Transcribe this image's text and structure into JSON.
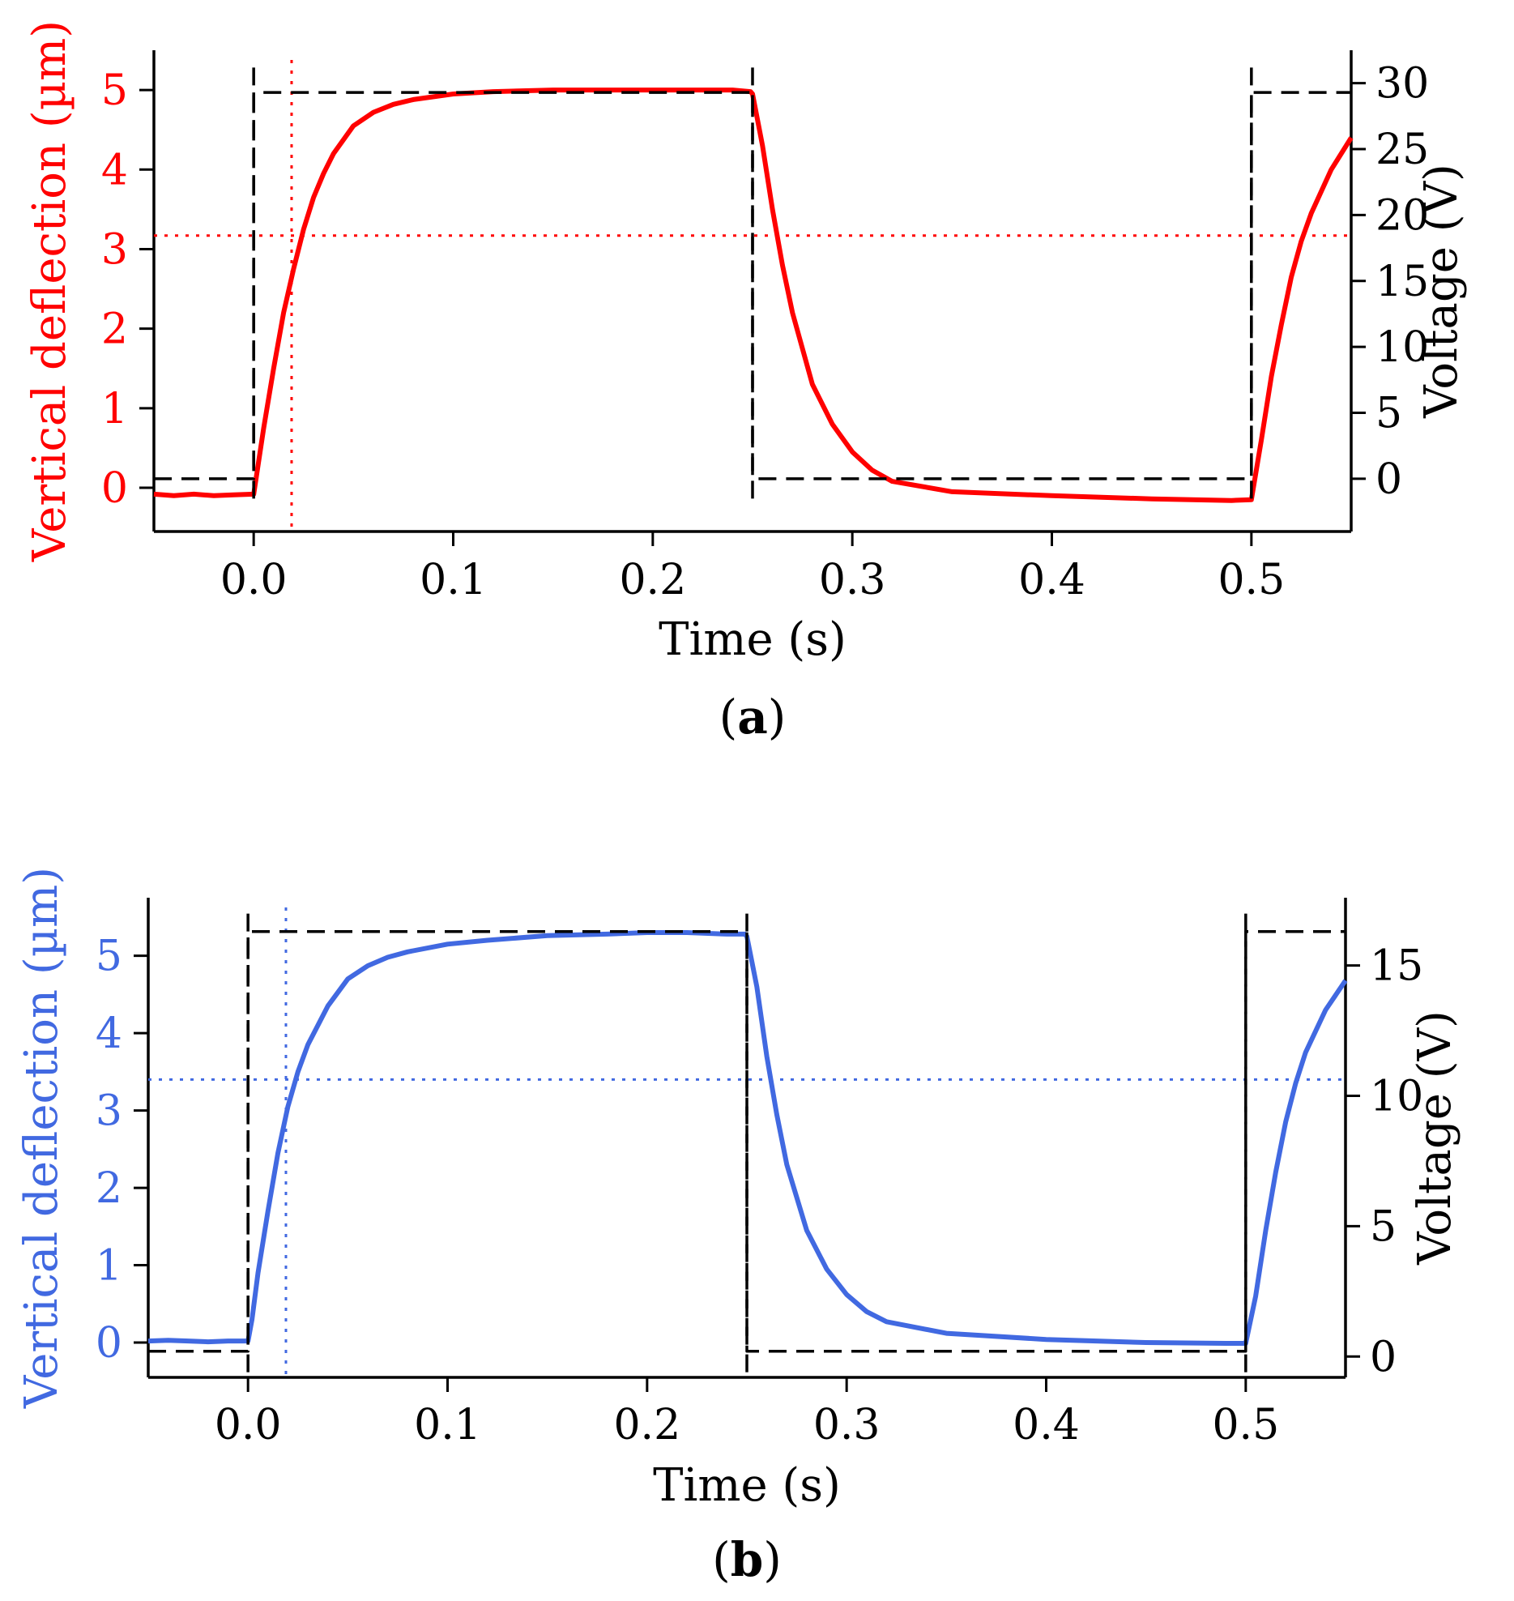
{
  "chart_data": [
    {
      "type": "line",
      "panel_label": "a",
      "caption": {
        "open": "(",
        "letter": "a",
        "close": ")"
      },
      "color": "#ff0000",
      "xlabel": "Time (s)",
      "ylabel_left": "Vertical deflection (µm)",
      "ylabel_right": "Voltage (V)",
      "xlim": [
        -0.05,
        0.55
      ],
      "ylim_left": [
        -0.55,
        5.5
      ],
      "ylim_right": [
        -4.0,
        32.5
      ],
      "xticks": [
        0.0,
        0.1,
        0.2,
        0.3,
        0.4,
        0.5
      ],
      "xtick_labels": [
        "0.0",
        "0.1",
        "0.2",
        "0.3",
        "0.4",
        "0.5"
      ],
      "yticks_left": [
        0,
        1,
        2,
        3,
        4,
        5
      ],
      "ytick_labels_left": [
        "0",
        "1",
        "2",
        "3",
        "4",
        "5"
      ],
      "yticks_right": [
        0,
        5,
        10,
        15,
        20,
        25,
        30
      ],
      "ytick_labels_right": [
        "0",
        "5",
        "10",
        "15",
        "20",
        "25",
        "30"
      ],
      "grid": false,
      "series": [
        {
          "name": "Vertical deflection",
          "axis": "left",
          "style": "solid",
          "color": "#ff0000",
          "x": [
            -0.05,
            -0.04,
            -0.03,
            -0.02,
            -0.01,
            0.0,
            0.002,
            0.005,
            0.01,
            0.015,
            0.02,
            0.025,
            0.03,
            0.035,
            0.04,
            0.05,
            0.06,
            0.07,
            0.08,
            0.1,
            0.12,
            0.15,
            0.18,
            0.2,
            0.22,
            0.24,
            0.249,
            0.25,
            0.255,
            0.26,
            0.265,
            0.27,
            0.28,
            0.29,
            0.3,
            0.31,
            0.32,
            0.35,
            0.4,
            0.45,
            0.49,
            0.5,
            0.505,
            0.51,
            0.515,
            0.52,
            0.525,
            0.53,
            0.54,
            0.55
          ],
          "y": [
            -0.08,
            -0.1,
            -0.08,
            -0.1,
            -0.09,
            -0.08,
            0.25,
            0.75,
            1.5,
            2.2,
            2.75,
            3.25,
            3.65,
            3.95,
            4.2,
            4.55,
            4.72,
            4.82,
            4.88,
            4.95,
            4.98,
            5.0,
            5.0,
            5.0,
            5.0,
            5.0,
            4.98,
            4.95,
            4.3,
            3.5,
            2.8,
            2.2,
            1.3,
            0.8,
            0.45,
            0.22,
            0.08,
            -0.05,
            -0.1,
            -0.14,
            -0.16,
            -0.15,
            0.6,
            1.4,
            2.05,
            2.65,
            3.1,
            3.45,
            4.0,
            4.4
          ]
        },
        {
          "name": "Voltage",
          "axis": "right",
          "style": "dashed",
          "color": "#000000",
          "x": [
            -0.05,
            0.0,
            0.0,
            0.25,
            0.25,
            0.5,
            0.5,
            0.55
          ],
          "y": [
            0,
            0,
            29.3,
            29.3,
            0,
            0,
            29.3,
            29.3
          ]
        }
      ],
      "markers": {
        "t63_x": 0.019,
        "y63": 3.17,
        "voltage_edges_x": [
          0.0,
          0.25,
          0.5
        ],
        "voltage_edge_range_right": [
          -1.5,
          31.5
        ]
      }
    },
    {
      "type": "line",
      "panel_label": "b",
      "caption": {
        "open": "(",
        "letter": "b",
        "close": ")"
      },
      "color": "#4169e1",
      "xlabel": "Time (s)",
      "ylabel_left": "Vertical deflection (µm)",
      "ylabel_right": "Voltage (V)",
      "xlim": [
        -0.05,
        0.55
      ],
      "ylim_left": [
        -0.45,
        5.75
      ],
      "ylim_right": [
        -0.8,
        17.6
      ],
      "xticks": [
        0.0,
        0.1,
        0.2,
        0.3,
        0.4,
        0.5
      ],
      "xtick_labels": [
        "0.0",
        "0.1",
        "0.2",
        "0.3",
        "0.4",
        "0.5"
      ],
      "yticks_left": [
        0,
        1,
        2,
        3,
        4,
        5
      ],
      "ytick_labels_left": [
        "0",
        "1",
        "2",
        "3",
        "4",
        "5"
      ],
      "yticks_right": [
        0,
        5,
        10,
        15
      ],
      "ytick_labels_right": [
        "0",
        "5",
        "10",
        "15"
      ],
      "grid": false,
      "series": [
        {
          "name": "Vertical deflection",
          "axis": "left",
          "style": "solid",
          "color": "#4169e1",
          "x": [
            -0.05,
            -0.04,
            -0.03,
            -0.02,
            -0.01,
            0.0,
            0.002,
            0.005,
            0.01,
            0.015,
            0.02,
            0.025,
            0.03,
            0.04,
            0.05,
            0.06,
            0.07,
            0.08,
            0.1,
            0.12,
            0.15,
            0.18,
            0.2,
            0.22,
            0.24,
            0.249,
            0.25,
            0.255,
            0.26,
            0.265,
            0.27,
            0.28,
            0.29,
            0.3,
            0.31,
            0.32,
            0.35,
            0.4,
            0.45,
            0.49,
            0.5,
            0.505,
            0.51,
            0.515,
            0.52,
            0.525,
            0.53,
            0.54,
            0.55
          ],
          "y": [
            0.02,
            0.03,
            0.02,
            0.01,
            0.02,
            0.02,
            0.3,
            0.9,
            1.7,
            2.45,
            3.05,
            3.5,
            3.85,
            4.35,
            4.7,
            4.87,
            4.98,
            5.05,
            5.15,
            5.2,
            5.26,
            5.28,
            5.3,
            5.3,
            5.28,
            5.28,
            5.25,
            4.6,
            3.7,
            2.95,
            2.3,
            1.45,
            0.95,
            0.62,
            0.4,
            0.27,
            0.12,
            0.04,
            0.0,
            -0.01,
            -0.01,
            0.6,
            1.45,
            2.2,
            2.85,
            3.35,
            3.75,
            4.3,
            4.68
          ]
        },
        {
          "name": "Voltage",
          "axis": "right",
          "style": "dashed",
          "color": "#000000",
          "x": [
            -0.05,
            0.0,
            0.0,
            0.25,
            0.25,
            0.5,
            0.5,
            0.55
          ],
          "y": [
            0.2,
            0.2,
            16.3,
            16.3,
            0.2,
            0.2,
            16.3,
            16.3
          ]
        }
      ],
      "markers": {
        "t63_x": 0.019,
        "y63": 3.4,
        "voltage_edges_x": [
          0.0,
          0.25,
          0.5
        ],
        "voltage_edge_range_right": [
          -0.6,
          17.2
        ]
      }
    }
  ]
}
